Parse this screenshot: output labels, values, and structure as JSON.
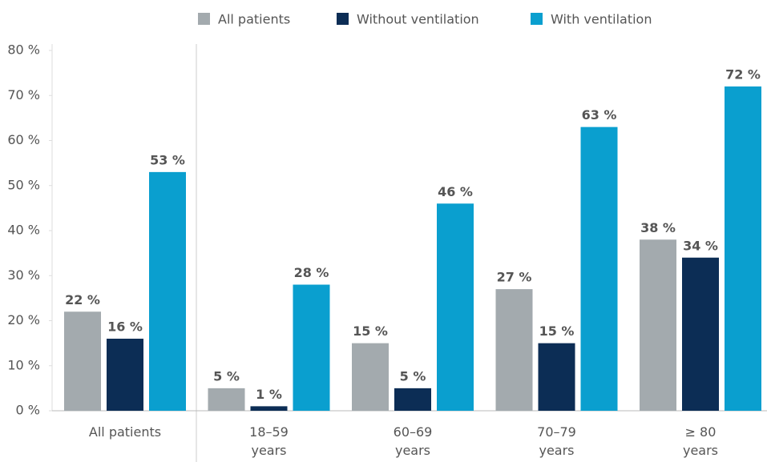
{
  "chart_data": {
    "type": "bar",
    "categories": [
      "All patients",
      "18–59 years",
      "60–69 years",
      "70–79 years",
      "≥ 80 years"
    ],
    "series": [
      {
        "name": "All patients",
        "color": "#a3aaae",
        "label_color": "#7c858b",
        "values": [
          22,
          5,
          15,
          27,
          38
        ],
        "value_labels": [
          "22 %",
          "5 %",
          "15 %",
          "27 %",
          "38 %"
        ]
      },
      {
        "name": "Without ventilation",
        "color": "#0c2d55",
        "label_color": "#0c2d55",
        "values": [
          16,
          1,
          5,
          15,
          34
        ],
        "value_labels": [
          "16 %",
          "1 %",
          "5 %",
          "15 %",
          "34 %"
        ]
      },
      {
        "name": "With ventilation",
        "color": "#0a9fcf",
        "label_color": "#0a9fcf",
        "values": [
          53,
          28,
          46,
          63,
          72
        ],
        "value_labels": [
          "53 %",
          "28 %",
          "46 %",
          "63 %",
          "72 %"
        ]
      }
    ],
    "ylim": [
      0,
      80
    ],
    "yticks": [
      {
        "value": 0,
        "label": "0 %"
      },
      {
        "value": 10,
        "label": "10 %"
      },
      {
        "value": 20,
        "label": "20 %"
      },
      {
        "value": 30,
        "label": "30 %"
      },
      {
        "value": 40,
        "label": "40 %"
      },
      {
        "value": 50,
        "label": "50 %"
      },
      {
        "value": 60,
        "label": "60 %"
      },
      {
        "value": 70,
        "label": "70 %"
      },
      {
        "value": 80,
        "label": "80 %"
      }
    ],
    "legend": "top"
  }
}
